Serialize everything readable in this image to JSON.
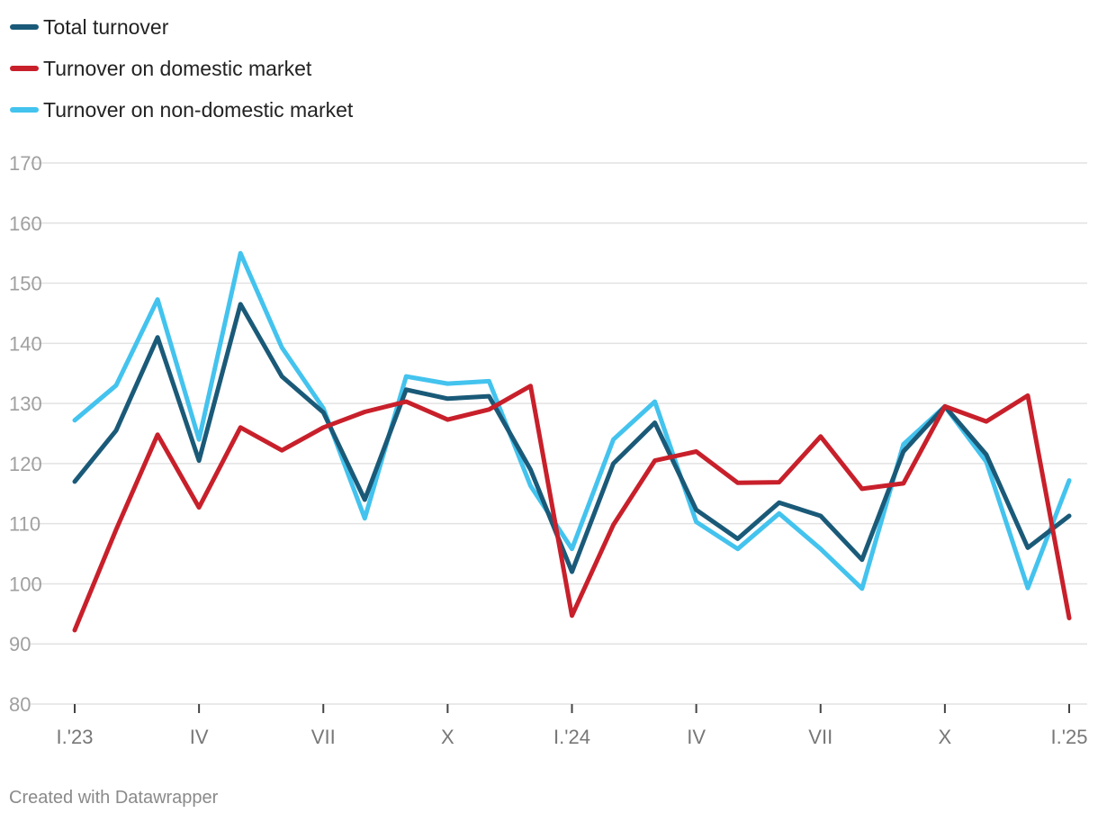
{
  "chart_data": {
    "type": "line",
    "title": "",
    "xlabel": "",
    "ylabel": "",
    "ylim": [
      80,
      170
    ],
    "yticks": [
      80,
      90,
      100,
      110,
      120,
      130,
      140,
      150,
      160,
      170
    ],
    "grid": true,
    "legend_position": "top-left",
    "x_tick_labels": [
      "I.'23",
      "IV",
      "VII",
      "X",
      "I.'24",
      "IV",
      "VII",
      "X",
      "I.'25"
    ],
    "x_tick_indices": [
      0,
      3,
      6,
      9,
      12,
      15,
      18,
      21,
      24
    ],
    "series": [
      {
        "name": "Total turnover",
        "color": "#1a5a78",
        "values": [
          117,
          125.5,
          141,
          120.5,
          146.5,
          134.5,
          128.5,
          114,
          132.3,
          130.8,
          131.2,
          119,
          102,
          120,
          126.8,
          112.3,
          107.5,
          113.5,
          111.3,
          104,
          122,
          129.5,
          121.5,
          106,
          111.3
        ]
      },
      {
        "name": "Turnover on domestic market",
        "color": "#c8202b",
        "values": [
          92.3,
          109,
          124.8,
          112.7,
          126,
          122.2,
          126,
          128.6,
          130.3,
          127.3,
          129,
          132.9,
          94.7,
          109.8,
          120.5,
          122,
          116.8,
          116.9,
          124.5,
          115.8,
          116.7,
          129.5,
          127,
          131.3,
          94.3
        ]
      },
      {
        "name": "Turnover on non-domestic market",
        "color": "#43c3ee",
        "values": [
          127.2,
          133,
          147.3,
          124,
          155,
          139.3,
          129.2,
          110.9,
          134.5,
          133.3,
          133.7,
          116.3,
          105.8,
          124,
          130.3,
          110.3,
          105.8,
          111.7,
          105.8,
          99.2,
          123.2,
          129.5,
          120.3,
          99.3,
          117.2
        ]
      }
    ]
  },
  "credit": "Created with Datawrapper"
}
